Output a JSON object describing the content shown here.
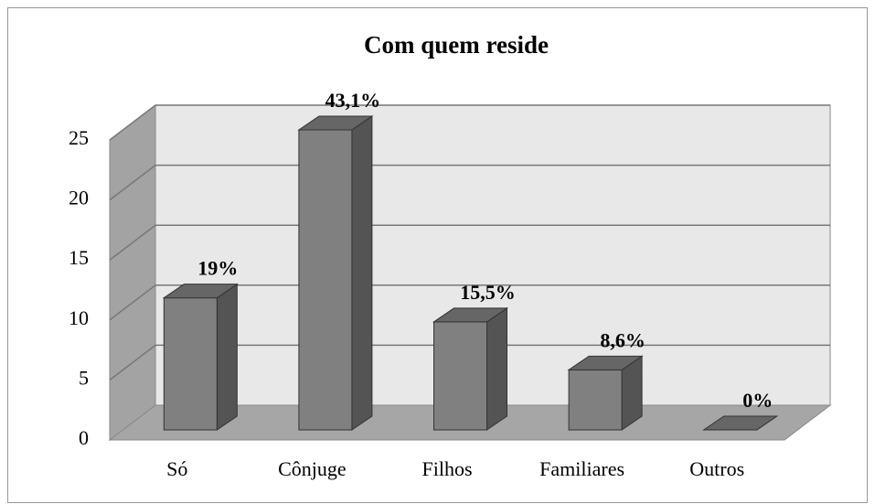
{
  "chart_data": {
    "type": "bar3d",
    "title": "Com quem reside",
    "categories": [
      "Só",
      "Cônjuge",
      "Filhos",
      "Familiares",
      "Outros"
    ],
    "values": [
      11,
      25,
      9,
      5,
      0
    ],
    "annotations": [
      "19%",
      "43,1%",
      "15,5%",
      "8,6%",
      "0%"
    ],
    "color": "#808080",
    "ylim": [
      0,
      25
    ],
    "yticks": [
      0,
      5,
      10,
      15,
      20,
      25
    ],
    "grid": true
  }
}
